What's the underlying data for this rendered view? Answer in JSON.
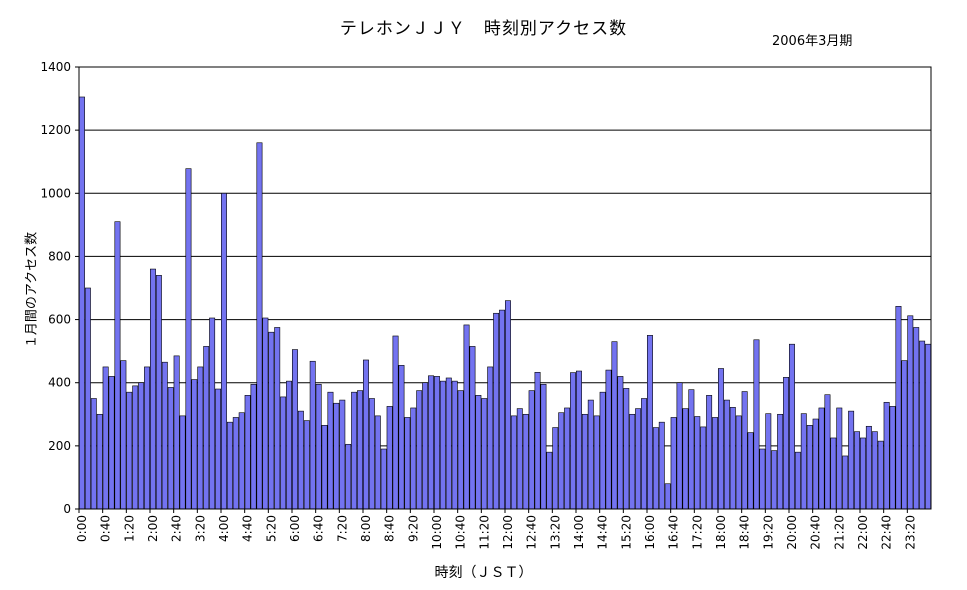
{
  "chart_data": {
    "type": "bar",
    "title": "テレホンＪＪＹ　時刻別アクセス数",
    "subtitle": "2006年3月期",
    "xlabel": "時刻（ＪＳＴ）",
    "ylabel": "１月間のアクセス数",
    "ylim": [
      0,
      1400
    ],
    "yticks": [
      0,
      200,
      400,
      600,
      800,
      1000,
      1200,
      1400
    ],
    "xtick_labels": [
      "0:00",
      "0:40",
      "1:20",
      "2:00",
      "2:40",
      "3:20",
      "4:00",
      "4:40",
      "5:20",
      "6:00",
      "6:40",
      "7:20",
      "8:00",
      "8:40",
      "9:20",
      "10:00",
      "10:40",
      "11:20",
      "12:00",
      "12:40",
      "13:20",
      "14:00",
      "14:40",
      "15:20",
      "16:00",
      "16:40",
      "17:20",
      "18:00",
      "18:40",
      "19:20",
      "20:00",
      "20:40",
      "21:20",
      "22:00",
      "22:40",
      "23:20"
    ],
    "grid": true,
    "bar_color": "#7373f0",
    "interval_minutes": 10,
    "values": [
      1305,
      700,
      350,
      300,
      450,
      420,
      910,
      470,
      370,
      390,
      400,
      450,
      760,
      740,
      465,
      385,
      485,
      295,
      1078,
      410,
      450,
      515,
      605,
      380,
      1000,
      275,
      290,
      305,
      360,
      395,
      1160,
      605,
      560,
      575,
      355,
      405,
      505,
      310,
      280,
      468,
      395,
      265,
      370,
      335,
      345,
      205,
      370,
      375,
      472,
      350,
      295,
      190,
      325,
      548,
      455,
      290,
      320,
      375,
      400,
      422,
      420,
      405,
      415,
      405,
      375,
      583,
      515,
      360,
      350,
      450,
      620,
      630,
      660,
      295,
      318,
      300,
      375,
      433,
      395,
      180,
      258,
      305,
      320,
      432,
      437,
      300,
      345,
      295,
      370,
      440,
      530,
      420,
      382,
      300,
      318,
      350,
      550,
      258,
      275,
      80,
      290,
      400,
      318,
      378,
      293,
      260,
      360,
      290,
      445,
      345,
      322,
      295,
      372,
      242,
      536,
      190,
      302,
      185,
      300,
      417,
      522,
      180,
      302,
      265,
      285,
      320,
      362,
      225,
      320,
      168,
      310,
      245,
      225,
      262,
      245,
      215,
      338,
      325,
      642,
      470,
      612,
      575,
      532,
      522
    ]
  }
}
